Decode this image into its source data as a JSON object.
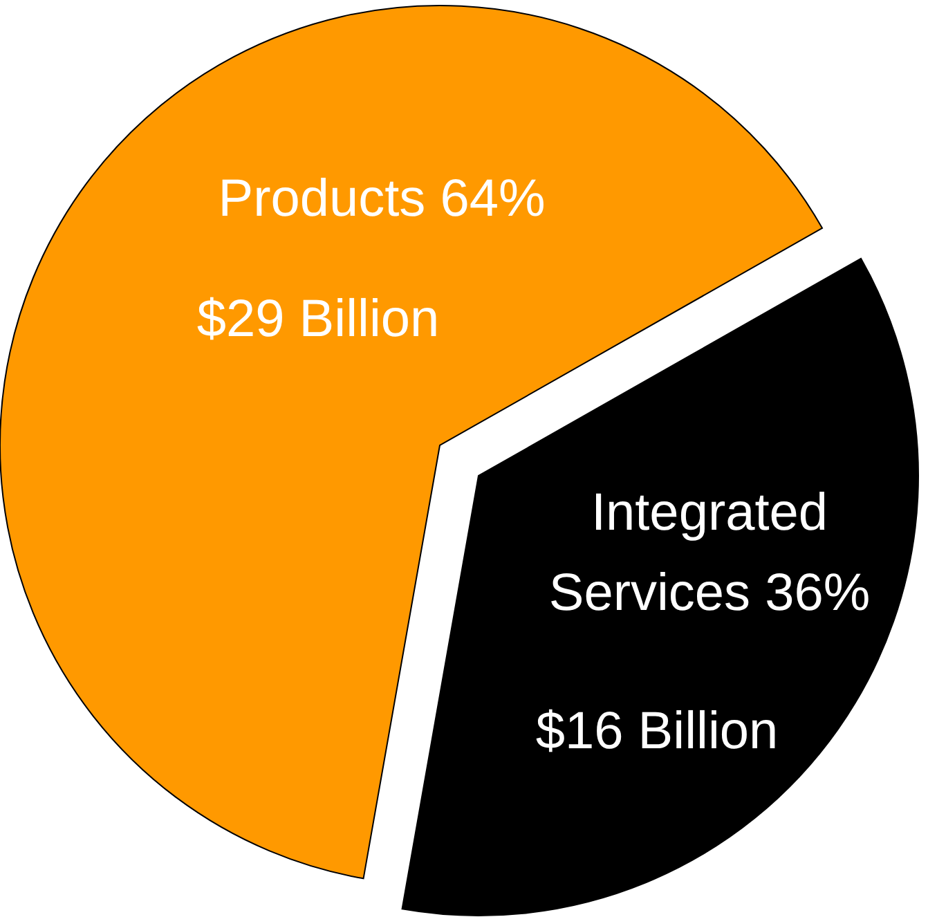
{
  "chart_data": {
    "type": "pie",
    "categories": [
      "Products",
      "Integrated Services"
    ],
    "values": [
      64,
      36
    ],
    "colors": [
      "#ff9900",
      "#000000"
    ],
    "value_labels": [
      "64%",
      "36%"
    ],
    "annotations": [
      "$29 Billion",
      "$16 Billion"
    ]
  }
}
